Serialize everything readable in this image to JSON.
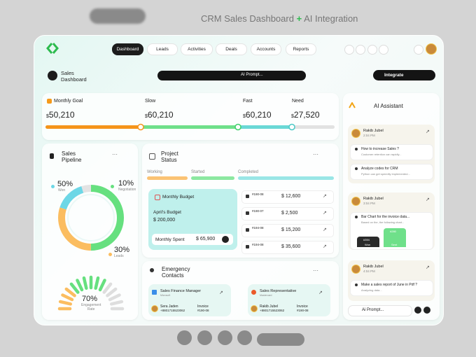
{
  "header": {
    "title": "CRM Sales Dashboard",
    "plus": "+",
    "title_suffix": "AI Integration"
  },
  "nav": {
    "tabs": [
      "Dashboard",
      "Leads",
      "Activities",
      "Deals",
      "Accounts",
      "Reports"
    ]
  },
  "toolbar": {
    "page_title": [
      "Sales",
      "Dashboard"
    ],
    "prompt": "AI Prompt...",
    "integrate": "Integrate"
  },
  "goals": {
    "currency": "$",
    "items": [
      {
        "label": "Monthly Goal",
        "value": "50,210"
      },
      {
        "label": "Slow",
        "value": "60,210"
      },
      {
        "label": "Fast",
        "value": "60,210"
      },
      {
        "label": "Need",
        "value": "27,520"
      }
    ]
  },
  "pipeline": {
    "title": [
      "Sales",
      "Pipeline"
    ],
    "stats": [
      {
        "value": "50%",
        "label": "Won"
      },
      {
        "value": "10%",
        "label": "Negotiation"
      },
      {
        "value": "30%",
        "label": "Leads"
      }
    ],
    "engagement": {
      "value": "70%",
      "label": [
        "Engagement",
        "Rate"
      ]
    }
  },
  "project": {
    "title": [
      "Project",
      "Status"
    ],
    "stages": [
      "Working",
      "Started",
      "Completed"
    ],
    "budget": {
      "title": "Monthly Budget",
      "april_label": "April's Budget",
      "april_value": "$ 200,000",
      "spent_label": "Monthly Spent",
      "spent_value": "$ 65,900"
    },
    "items": [
      {
        "id": "#190-08",
        "amount": "$ 12,600"
      },
      {
        "id": "#190-07",
        "amount": "$ 2,500"
      },
      {
        "id": "#194-08",
        "amount": "$ 15,200"
      },
      {
        "id": "#194-08",
        "amount": "$ 35,600"
      }
    ]
  },
  "contacts": {
    "title": [
      "Emergency",
      "Contacts"
    ],
    "cards": [
      {
        "role": "Sales Finance Manager",
        "company": "Microsoft",
        "name": "Sera Jaden",
        "phone": "+8801715523062",
        "invoice_label": "Invoice",
        "invoice": "#190-08"
      },
      {
        "role": "Sales Representative",
        "company": "Mastercard",
        "name": "Rakib Jubel",
        "phone": "+8801715523062",
        "invoice_label": "Invoice",
        "invoice": "#190-08"
      }
    ]
  },
  "assistant": {
    "title": "AI Assistant",
    "chats": [
      {
        "user": "Rakib Jubel",
        "time": "2:04 PM",
        "messages": [
          {
            "q": "How to increase Sales ?",
            "a": "Customer retention can rapidly..."
          },
          {
            "q": "Analyze codes for CRM",
            "a": "Python can get speedily implemented..."
          }
        ]
      },
      {
        "user": "Rakib Jubel",
        "time": "3:04 PM",
        "messages": [
          {
            "q": "Bar Chart for the invoice data...",
            "a": "Based on the, the following chart..."
          }
        ],
        "bars": [
          {
            "value": "#394",
            "label": "Won"
          },
          {
            "value": "#280",
            "label": "Sent"
          }
        ]
      },
      {
        "user": "Rakib Jubel",
        "time": "4:04 PM",
        "messages": [
          {
            "q": "Make a sales report of June in Pdf ?",
            "a": "Analyzing data..."
          }
        ]
      }
    ],
    "input": "Ai Prompt..."
  }
}
